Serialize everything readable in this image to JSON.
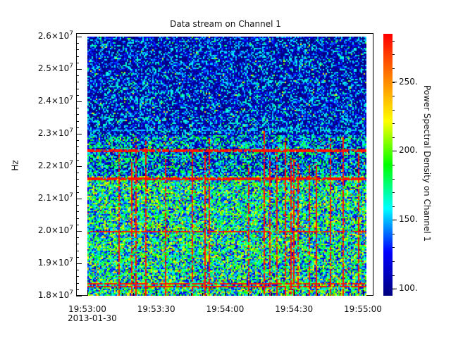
{
  "chart_data": {
    "type": "heatmap",
    "title": "Data stream on Channel 1",
    "ylabel": "Hz",
    "xlabel": "",
    "x_tick_labels": [
      "19:53:00",
      "19:53:30",
      "19:54:00",
      "19:54:30",
      "19:55:00"
    ],
    "x_date_label": "2013-01-30",
    "xlim_seconds": [
      0,
      122
    ],
    "y_tick_labels": [
      {
        "mant": "2.6",
        "exp": "7",
        "value": 26000000
      },
      {
        "mant": "2.5",
        "exp": "7",
        "value": 25000000
      },
      {
        "mant": "2.4",
        "exp": "7",
        "value": 24000000
      },
      {
        "mant": "2.3",
        "exp": "7",
        "value": 23000000
      },
      {
        "mant": "2.2",
        "exp": "7",
        "value": 22000000
      },
      {
        "mant": "2.1",
        "exp": "7",
        "value": 21000000
      },
      {
        "mant": "2.0",
        "exp": "7",
        "value": 20000000
      },
      {
        "mant": "1.9",
        "exp": "7",
        "value": 19000000
      },
      {
        "mant": "1.8",
        "exp": "7",
        "value": 18000000
      }
    ],
    "ylim": [
      18000000,
      26000000
    ],
    "colorbar": {
      "label": "Power Spectral Density on Channel 1",
      "ticks": [
        "100.",
        "150.",
        "200.",
        "250."
      ],
      "tick_values": [
        100,
        150,
        200,
        250
      ],
      "range": [
        95,
        285
      ],
      "colormap": [
        "#000080",
        "#0000ff",
        "#00ffff",
        "#00ff00",
        "#ffff00",
        "#ff8000",
        "#ff0000"
      ]
    },
    "bands": [
      {
        "from_hz": 23000000,
        "to_hz": 26000000,
        "mean_psd": 110
      },
      {
        "from_hz": 21700000,
        "to_hz": 23000000,
        "mean_psd": 140
      },
      {
        "from_hz": 18000000,
        "to_hz": 21700000,
        "mean_psd": 168
      }
    ],
    "strong_lines_hz": [
      21650000,
      22500000,
      20000000,
      18400000,
      18300000
    ],
    "weak_lines_hz": [
      23150000
    ]
  }
}
